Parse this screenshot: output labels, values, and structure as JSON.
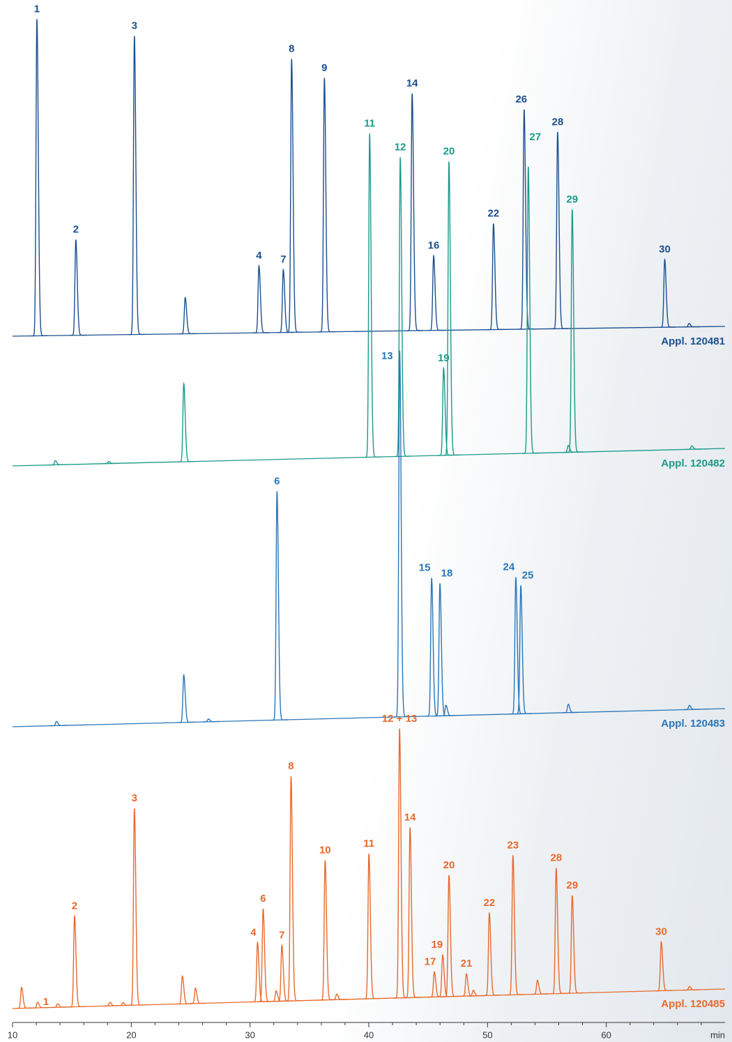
{
  "chart_data": {
    "type": "chromatogram",
    "xlim": [
      10,
      70
    ],
    "xticks": [
      10,
      20,
      30,
      40,
      50,
      60
    ],
    "xminorticks": [
      12,
      14,
      16,
      18,
      22,
      24,
      26,
      28,
      32,
      34,
      36,
      38,
      42,
      44,
      46,
      48,
      52,
      54,
      56,
      58,
      62,
      64,
      66,
      68
    ],
    "x_label": "min",
    "ylim": [
      0,
      460
    ],
    "series": [
      {
        "name": "Appl. 120481",
        "color": "#1b4f8f",
        "x": [
          12.05,
          15.33,
          20.26,
          24.54,
          30.75,
          32.8,
          33.5,
          36.26,
          43.65,
          45.46,
          50.5,
          53.08,
          55.9,
          64.92,
          66.97
        ],
        "values": [
          454,
          137,
          428,
          52,
          96,
          90,
          392,
          364,
          340,
          107,
          152,
          315,
          282,
          97,
          5
        ],
        "labels": [
          "1",
          "2",
          "3",
          null,
          "4",
          "7",
          "8",
          "9",
          "14",
          "16",
          "22",
          "26",
          "28",
          "30",
          null
        ]
      },
      {
        "name": "Appl. 120482",
        "color": "#1a9a8a",
        "x": [
          13.6,
          18.1,
          24.42,
          40.07,
          42.65,
          46.3,
          46.75,
          53.43,
          56.8,
          57.13,
          67.2
        ],
        "values": [
          6,
          3,
          112,
          464,
          429,
          125,
          421,
          411,
          10,
          348,
          5
        ],
        "labels": [
          null,
          null,
          null,
          "11",
          "12",
          "19",
          "20",
          "27",
          null,
          "29",
          null
        ]
      },
      {
        "name": "Appl. 120483",
        "color": "#2a76b8",
        "x": [
          13.7,
          24.42,
          26.5,
          32.27,
          42.6,
          45.29,
          45.99,
          46.5,
          52.38,
          52.8,
          56.8,
          67
        ],
        "values": [
          6,
          68,
          4,
          328,
          525,
          198,
          190,
          15,
          196,
          184,
          12,
          6
        ],
        "labels": [
          null,
          null,
          null,
          "6",
          "13",
          "15",
          "18",
          null,
          "24",
          "25",
          null,
          null
        ]
      },
      {
        "name": "Appl. 120485",
        "color": "#e8692c",
        "x": [
          10.76,
          12.11,
          13.8,
          15.22,
          18.2,
          19.3,
          20.26,
          24.3,
          25.4,
          30.63,
          31.1,
          32.2,
          32.68,
          33.45,
          36.32,
          37.3,
          40.01,
          42.59,
          43.47,
          45.52,
          46.22,
          46.75,
          48.22,
          48.8,
          50.15,
          52.14,
          54.2,
          55.78,
          57.13,
          64.63,
          67
        ],
        "values": [
          30,
          8,
          5,
          130,
          5,
          4,
          282,
          40,
          22,
          85,
          133,
          15,
          80,
          322,
          200,
          8,
          208,
          386,
          244,
          36,
          60,
          174,
          32,
          8,
          118,
          200,
          20,
          180,
          140,
          70,
          5
        ],
        "labels": [
          null,
          "1",
          null,
          "2",
          null,
          null,
          "3",
          null,
          null,
          "4",
          "6",
          null,
          "7",
          "8",
          "10",
          null,
          "11",
          "12 + 13",
          "14",
          "17",
          "19",
          "20",
          "21",
          null,
          "22",
          "23",
          null,
          "28",
          "29",
          "30",
          null
        ]
      }
    ]
  }
}
